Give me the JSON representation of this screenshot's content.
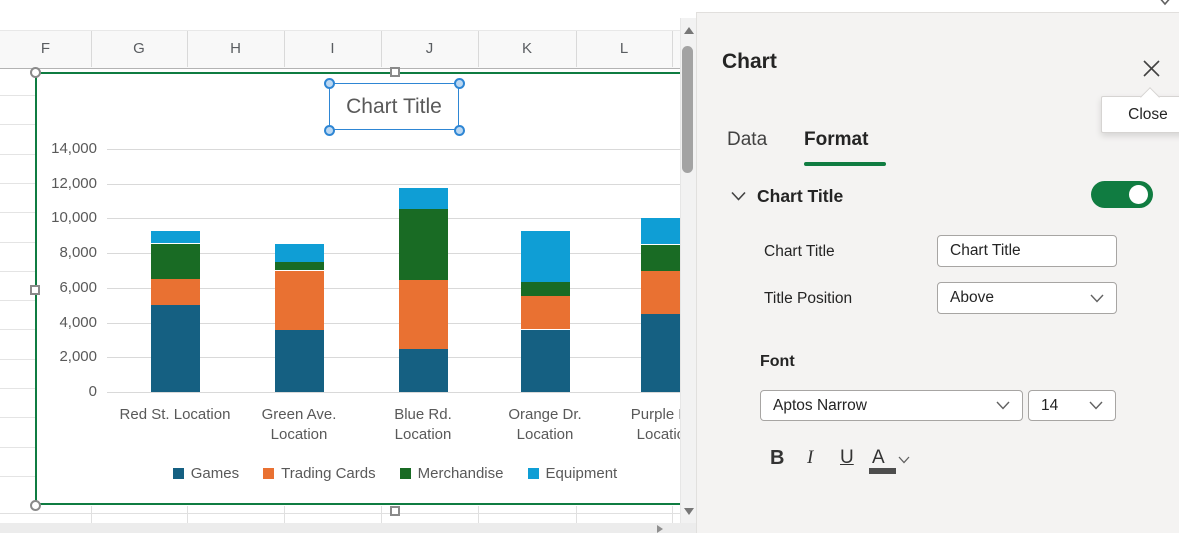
{
  "spreadsheet": {
    "column_headers": [
      "F",
      "G",
      "H",
      "I",
      "J",
      "K",
      "L"
    ]
  },
  "chart_data": {
    "type": "bar",
    "stacked": true,
    "title": "Chart Title",
    "categories": [
      "Red St. Location",
      "Green Ave. Location",
      "Blue Rd. Location",
      "Orange Dr. Location",
      "Purple Ln. Location"
    ],
    "category_label_lines": [
      [
        "Red St. Location"
      ],
      [
        "Green Ave.",
        "Location"
      ],
      [
        "Blue Rd.",
        "Location"
      ],
      [
        "Orange Dr.",
        "Location"
      ],
      [
        "Purple Ln.",
        "Location"
      ]
    ],
    "series": [
      {
        "name": "Games",
        "color": "#156082",
        "values": [
          5000,
          3600,
          2500,
          3600,
          4500
        ]
      },
      {
        "name": "Trading Cards",
        "color": "#E97132",
        "values": [
          1500,
          3400,
          3950,
          1950,
          2500
        ]
      },
      {
        "name": "Merchandise",
        "color": "#196B24",
        "values": [
          2050,
          500,
          4100,
          800,
          1500
        ]
      },
      {
        "name": "Equipment",
        "color": "#0F9ED5",
        "values": [
          700,
          1050,
          1200,
          2900,
          1500
        ]
      }
    ],
    "ylim": [
      0,
      14000
    ],
    "ytick_step": 2000,
    "ytick_labels": [
      "0",
      "2,000",
      "4,000",
      "6,000",
      "8,000",
      "10,000",
      "12,000",
      "14,000"
    ],
    "grid": true,
    "legend_position": "bottom"
  },
  "panel": {
    "title": "Chart",
    "tooltip": "Close",
    "tabs": [
      {
        "label": "Data",
        "active": false
      },
      {
        "label": "Format",
        "active": true
      }
    ],
    "section": {
      "title": "Chart Title",
      "toggle_on": true,
      "title_field": {
        "label": "Chart Title",
        "value": "Chart Title"
      },
      "position_field": {
        "label": "Title Position",
        "value": "Above"
      },
      "font": {
        "label": "Font",
        "family": "Aptos Narrow",
        "size": "14",
        "bold": "B",
        "italic": "I",
        "underline": "U",
        "color_btn": "A"
      }
    }
  },
  "colors": {
    "excel_green": "#107C41",
    "selection_border_green": "#0F7C41",
    "title_selection_blue": "#2E86D4",
    "gridline_gray": "#D9D9D9",
    "chart_text_gray": "#595959"
  }
}
